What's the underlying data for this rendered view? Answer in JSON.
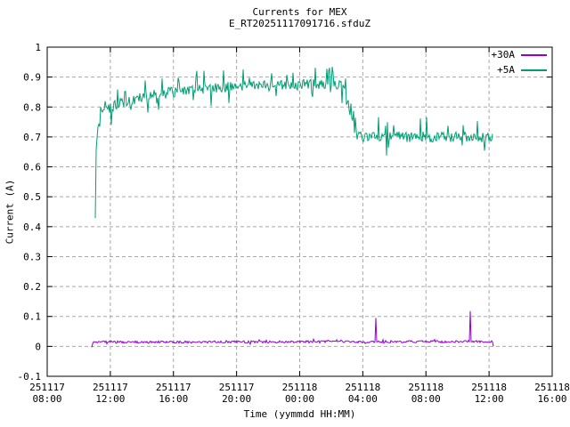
{
  "chart_data": {
    "type": "line",
    "title": "Currents for MEX",
    "subtitle": "E_RT20251117091716.sfduZ",
    "xlabel": "Time (yymmdd HH:MM)",
    "ylabel": "Current (A)",
    "ylim": [
      -0.1,
      1.0
    ],
    "xlim_hours": [
      0,
      32
    ],
    "grid": true,
    "legend_position": "top-right-inside",
    "axis_color": "#000000",
    "grid_color": "#a8a8a8",
    "background": "#ffffff",
    "yticks": [
      {
        "value": 1.0,
        "label": "1"
      },
      {
        "value": 0.9,
        "label": "0.9"
      },
      {
        "value": 0.8,
        "label": "0.8"
      },
      {
        "value": 0.7,
        "label": "0.7"
      },
      {
        "value": 0.6,
        "label": "0.6"
      },
      {
        "value": 0.5,
        "label": "0.5"
      },
      {
        "value": 0.4,
        "label": "0.4"
      },
      {
        "value": 0.3,
        "label": "0.3"
      },
      {
        "value": 0.2,
        "label": "0.2"
      },
      {
        "value": 0.1,
        "label": "0.1"
      },
      {
        "value": 0.0,
        "label": "0"
      },
      {
        "value": -0.1,
        "label": "-0.1"
      }
    ],
    "xticks": [
      {
        "hour": 0,
        "date": "251117",
        "time": "08:00"
      },
      {
        "hour": 4,
        "date": "251117",
        "time": "12:00"
      },
      {
        "hour": 8,
        "date": "251117",
        "time": "16:00"
      },
      {
        "hour": 12,
        "date": "251117",
        "time": "20:00"
      },
      {
        "hour": 16,
        "date": "251118",
        "time": "00:00"
      },
      {
        "hour": 20,
        "date": "251118",
        "time": "04:00"
      },
      {
        "hour": 24,
        "date": "251118",
        "time": "08:00"
      },
      {
        "hour": 28,
        "date": "251118",
        "time": "12:00"
      },
      {
        "hour": 32,
        "date": "251118",
        "time": "16:00"
      }
    ],
    "noise_seed": 20251117,
    "series": [
      {
        "name": "+30A",
        "color": "#9400D3",
        "start_hour": 2.82,
        "end_hour": 28.3,
        "base_points": [
          [
            2.82,
            0.0
          ],
          [
            2.9,
            0.014
          ],
          [
            28.18,
            0.016
          ],
          [
            28.24,
            0.013
          ],
          [
            28.3,
            -0.008
          ]
        ],
        "noise_amp": 0.004,
        "spike_prob": 0.03,
        "spike_scale": 2.2,
        "spike_up_bias": 0.6,
        "spikes": [
          {
            "hour": 20.85,
            "value": 0.095
          },
          {
            "hour": 26.78,
            "value": 0.118
          }
        ]
      },
      {
        "name": "+5A",
        "color": "#009E73",
        "start_hour": 3.05,
        "end_hour": 28.25,
        "base_points": [
          [
            3.05,
            0.44
          ],
          [
            3.09,
            0.63
          ],
          [
            3.17,
            0.72
          ],
          [
            3.45,
            0.775
          ],
          [
            4.2,
            0.805
          ],
          [
            6.0,
            0.835
          ],
          [
            9.0,
            0.857
          ],
          [
            12.0,
            0.868
          ],
          [
            15.0,
            0.873
          ],
          [
            18.78,
            0.878
          ],
          [
            19.62,
            0.7
          ],
          [
            28.25,
            0.7
          ]
        ],
        "noise_amp": 0.018,
        "spike_prob": 0.1,
        "spike_scale": 3.8,
        "spike_up_bias": 0.75,
        "spikes": []
      }
    ]
  }
}
